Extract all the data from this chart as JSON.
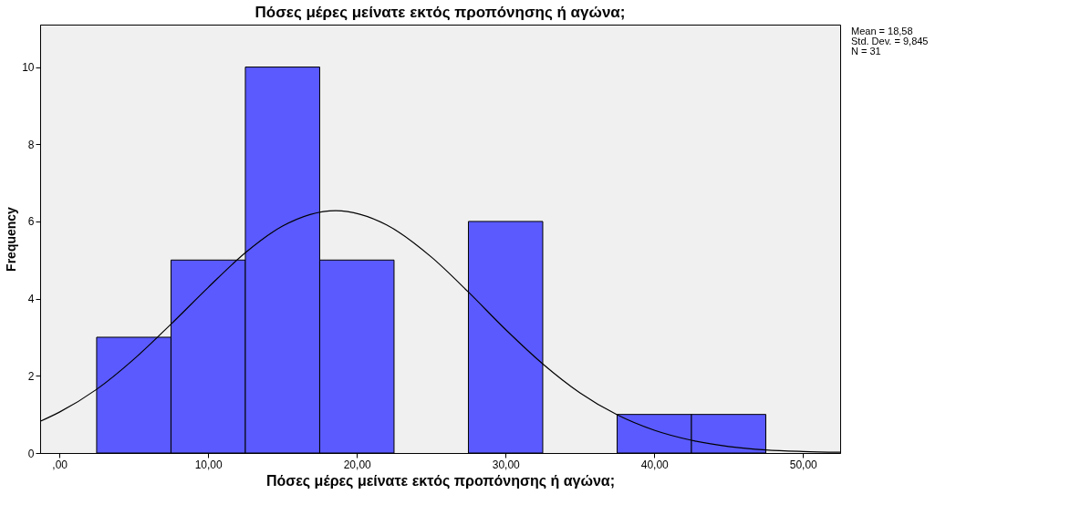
{
  "chart_data": {
    "type": "histogram",
    "title": "Πόσες μέρες μείνατε εκτός προπόνησης ή αγώνα;",
    "xlabel": "Πόσες μέρες μείνατε εκτός προπόνησης ή αγώνα;",
    "ylabel": "Frequency",
    "bins": [
      2.5,
      7.5,
      12.5,
      17.5,
      22.5,
      27.5,
      32.5,
      37.5,
      42.5,
      47.5
    ],
    "values": [
      3,
      5,
      10,
      5,
      0,
      6,
      0,
      1,
      1
    ],
    "color": "#5a5aff",
    "series": [
      {
        "type": "line",
        "color": "#000000",
        "x": [
          -1.3,
          0,
          2.5,
          5,
          7.5,
          10,
          12.5,
          15,
          18.58,
          22,
          25,
          27.5,
          30,
          32.5,
          35,
          37.5,
          40,
          42.5,
          45,
          47.5,
          50,
          52.5
        ],
        "values": [
          0.82,
          1.06,
          1.65,
          2.43,
          3.34,
          4.29,
          5.19,
          5.88,
          6.28,
          5.91,
          5.08,
          4.17,
          3.2,
          2.31,
          1.56,
          0.99,
          0.59,
          0.33,
          0.17,
          0.08,
          0.04,
          0.02
        ]
      }
    ],
    "xlim": [
      -1.3,
      52.5
    ],
    "ylim": [
      0,
      11.1
    ],
    "xticks": [
      {
        "value": 0,
        "label": ",00"
      },
      {
        "value": 10,
        "label": "10,00"
      },
      {
        "value": 20,
        "label": "20,00"
      },
      {
        "value": 30,
        "label": "30,00"
      },
      {
        "value": 40,
        "label": "40,00"
      },
      {
        "value": 50,
        "label": "50,00"
      }
    ],
    "yticks": [
      0,
      2,
      4,
      6,
      8,
      10
    ],
    "annotations": [
      "Mean = 18,58",
      "Std. Dev. = 9,845",
      "N = 31"
    ],
    "grid": false,
    "legend": false
  }
}
